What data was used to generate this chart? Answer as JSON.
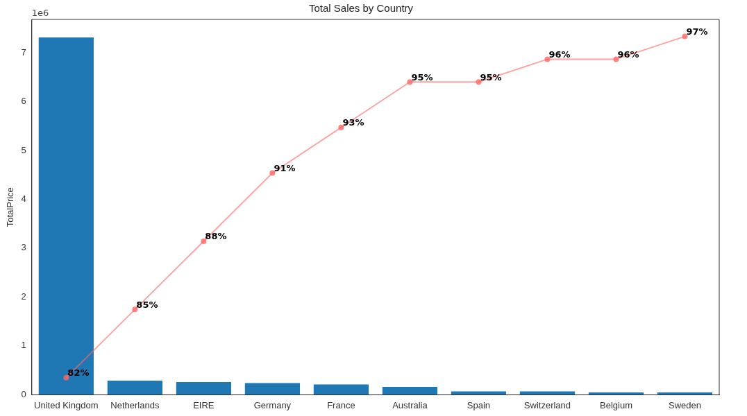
{
  "chart_data": {
    "type": "bar",
    "title": "Total Sales by Country",
    "ylabel": "TotalPrice",
    "categories": [
      "United Kingdom",
      "Netherlands",
      "EIRE",
      "Germany",
      "France",
      "Australia",
      "Spain",
      "Switzerland",
      "Belgium",
      "Sweden"
    ],
    "series": [
      {
        "color": "#1f77b4",
        "values": [
          7.31,
          0.29,
          0.26,
          0.24,
          0.21,
          0.16,
          0.07,
          0.07,
          0.05,
          0.05
        ]
      },
      {
        "type": "line",
        "axis": "y2",
        "color": "#ff6666",
        "marker": "circle",
        "value_labels": [
          "82%",
          "85%",
          "88%",
          "91%",
          "93%",
          "95%",
          "95%",
          "96%",
          "96%",
          "97%"
        ],
        "values": [
          82,
          85,
          88,
          91,
          93,
          95,
          95,
          96,
          96,
          97
        ]
      }
    ],
    "ylim": [
      0,
      7.68
    ],
    "yticks": [
      0,
      1,
      2,
      3,
      4,
      5,
      6,
      7
    ],
    "y2lim": [
      81.25,
      97.75
    ],
    "annotations": [
      "1e6"
    ],
    "grid": false,
    "legend": false
  }
}
